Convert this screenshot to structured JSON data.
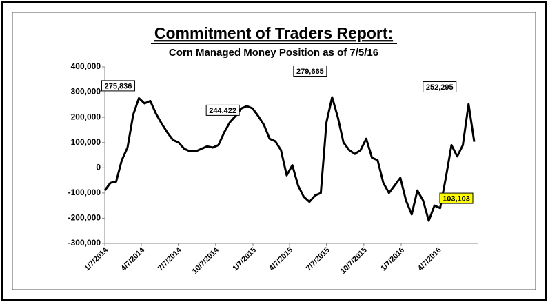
{
  "chart_data": {
    "type": "line",
    "title": "Commitment of Traders Report:",
    "subtitle": "Corn Managed Money Position as of 7/5/16",
    "x": [
      "1/7/2014",
      "1/21/2014",
      "2/4/2014",
      "2/18/2014",
      "3/4/2014",
      "3/18/2014",
      "4/1/2014",
      "4/15/2014",
      "4/29/2014",
      "5/13/2014",
      "5/27/2014",
      "6/10/2014",
      "6/24/2014",
      "7/8/2014",
      "7/22/2014",
      "8/5/2014",
      "8/19/2014",
      "9/2/2014",
      "9/16/2014",
      "9/30/2014",
      "10/14/2014",
      "10/28/2014",
      "11/11/2014",
      "11/25/2014",
      "12/9/2014",
      "12/23/2014",
      "1/6/2015",
      "1/20/2015",
      "2/3/2015",
      "2/17/2015",
      "3/3/2015",
      "3/17/2015",
      "3/31/2015",
      "4/14/2015",
      "4/28/2015",
      "5/12/2015",
      "5/26/2015",
      "6/9/2015",
      "6/23/2015",
      "7/7/2015",
      "7/21/2015",
      "8/4/2015",
      "8/18/2015",
      "9/1/2015",
      "9/15/2015",
      "9/29/2015",
      "10/13/2015",
      "10/27/2015",
      "11/10/2015",
      "11/24/2015",
      "12/8/2015",
      "12/22/2015",
      "1/5/2016",
      "1/19/2016",
      "2/2/2016",
      "2/16/2016",
      "3/1/2016",
      "3/15/2016",
      "3/29/2016",
      "4/12/2016",
      "4/26/2016",
      "5/10/2016",
      "5/24/2016",
      "6/7/2016",
      "6/21/2016",
      "7/5/2016"
    ],
    "series": [
      {
        "name": "Managed Money",
        "color": "#000000",
        "values": [
          -90000,
          -60000,
          -55000,
          30000,
          80000,
          210000,
          275836,
          255000,
          265000,
          215000,
          175000,
          140000,
          110000,
          100000,
          75000,
          65000,
          65000,
          75000,
          85000,
          80000,
          90000,
          140000,
          180000,
          205000,
          235000,
          244422,
          235000,
          205000,
          170000,
          115000,
          105000,
          70000,
          -30000,
          10000,
          -70000,
          -115000,
          -135000,
          -110000,
          -100000,
          180000,
          279665,
          200000,
          100000,
          70000,
          55000,
          70000,
          115000,
          40000,
          30000,
          -60000,
          -100000,
          -70000,
          -40000,
          -130000,
          -185000,
          -90000,
          -130000,
          -210000,
          -150000,
          -160000,
          -40000,
          90000,
          45000,
          90000,
          252295,
          103103
        ]
      }
    ],
    "annotations": [
      {
        "text": "275,836",
        "point": 6
      },
      {
        "text": "244,422",
        "point": 25
      },
      {
        "text": "279,665",
        "point": 40
      },
      {
        "text": "252,295",
        "point": 64
      },
      {
        "text": "103,103",
        "point": 65,
        "highlight": "#ffff00"
      }
    ],
    "xlim": [
      "1/7/2014",
      "7/5/2016"
    ],
    "xticks": [
      "1/7/2014",
      "4/7/2014",
      "7/7/2014",
      "10/7/2014",
      "1/7/2015",
      "4/7/2015",
      "7/7/2015",
      "10/7/2015",
      "1/7/2016",
      "4/7/2016"
    ],
    "ylim": [
      -300000,
      400000
    ],
    "yticks": [
      {
        "value": -300000,
        "label": "-300,000"
      },
      {
        "value": -200000,
        "label": "-200,000"
      },
      {
        "value": -100000,
        "label": "-100,000"
      },
      0,
      {
        "value": 100000,
        "label": "100,000"
      },
      {
        "value": 200000,
        "label": "200,000"
      },
      {
        "value": 300000,
        "label": "300,000"
      },
      {
        "value": 400000,
        "label": "400,000"
      }
    ],
    "grid": false
  }
}
